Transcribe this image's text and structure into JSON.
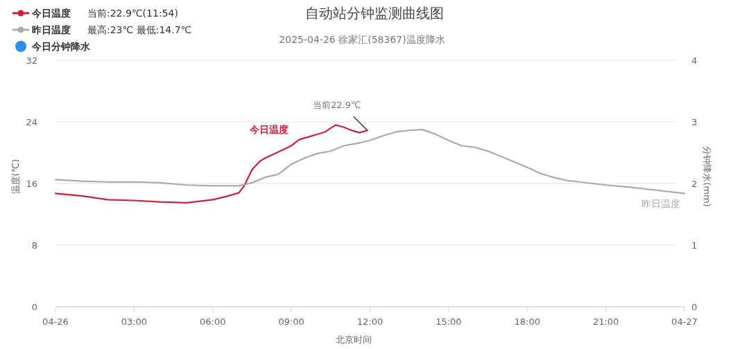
{
  "chart_data": {
    "type": "line",
    "title": "自动站分钟监测曲线图",
    "subtitle": "2025-04-26 徐家汇(58367)温度降水",
    "xlabel": "北京时间",
    "ylabel": "温度(℃)",
    "y2label": "分钟降水(mm)",
    "xlim": [
      0,
      24
    ],
    "xticks": [
      {
        "value": 0,
        "label": "04-26"
      },
      {
        "value": 3,
        "label": "03:00"
      },
      {
        "value": 6,
        "label": "06:00"
      },
      {
        "value": 9,
        "label": "09:00"
      },
      {
        "value": 12,
        "label": "12:00"
      },
      {
        "value": 15,
        "label": "15:00"
      },
      {
        "value": 18,
        "label": "18:00"
      },
      {
        "value": 21,
        "label": "21:00"
      },
      {
        "value": 24,
        "label": "04-27"
      }
    ],
    "ylim": [
      0,
      32
    ],
    "yticks": [
      0,
      8,
      16,
      24,
      32
    ],
    "y2lim": [
      0,
      4
    ],
    "y2ticks": [
      0,
      1,
      2,
      3,
      4
    ],
    "grid": "y",
    "legend": "top left",
    "marker": "none",
    "line_style": "solid",
    "annotations": [
      "当前:22.9℃(11:54)",
      "最高:23℃ 最低:14.7℃",
      {
        "text": "当前22.9℃",
        "x": 11.9,
        "y": 22.9
      }
    ],
    "series": [
      {
        "name": "今日温度",
        "color": "#c8203f",
        "x": [
          0,
          1,
          2,
          3,
          4,
          5,
          5.5,
          6,
          6.5,
          7,
          7.2,
          7.5,
          7.8,
          8,
          8.5,
          9,
          9.3,
          9.7,
          10,
          10.3,
          10.5,
          10.7,
          11,
          11.3,
          11.6,
          11.9
        ],
        "values": [
          14.7,
          14.4,
          13.9,
          13.8,
          13.6,
          13.5,
          13.7,
          13.9,
          14.3,
          14.8,
          15.7,
          17.8,
          18.9,
          19.3,
          20.1,
          20.9,
          21.7,
          22.1,
          22.4,
          22.7,
          23.2,
          23.6,
          23.3,
          22.9,
          22.6,
          22.9
        ]
      },
      {
        "name": "昨日温度",
        "color": "#aaaaaa",
        "x": [
          0,
          1,
          2,
          3,
          4,
          5,
          6,
          7,
          7.5,
          8,
          8.5,
          9,
          9.5,
          10,
          10.5,
          11,
          11.5,
          12,
          12.5,
          13,
          13.5,
          14,
          14.5,
          15,
          15.5,
          16,
          16.5,
          17,
          17.5,
          18,
          18.5,
          19,
          19.5,
          20,
          21,
          22,
          23,
          24
        ],
        "values": [
          16.5,
          16.3,
          16.2,
          16.2,
          16.1,
          15.8,
          15.7,
          15.7,
          16.1,
          16.8,
          17.2,
          18.5,
          19.3,
          19.9,
          20.2,
          20.9,
          21.2,
          21.6,
          22.2,
          22.7,
          22.9,
          23.0,
          22.4,
          21.6,
          20.9,
          20.7,
          20.2,
          19.5,
          18.8,
          18.1,
          17.3,
          16.8,
          16.4,
          16.2,
          15.8,
          15.5,
          15.1,
          14.7
        ]
      },
      {
        "name": "今日分钟降水",
        "color": "#2a8fe8",
        "type": "bar"
      }
    ]
  }
}
